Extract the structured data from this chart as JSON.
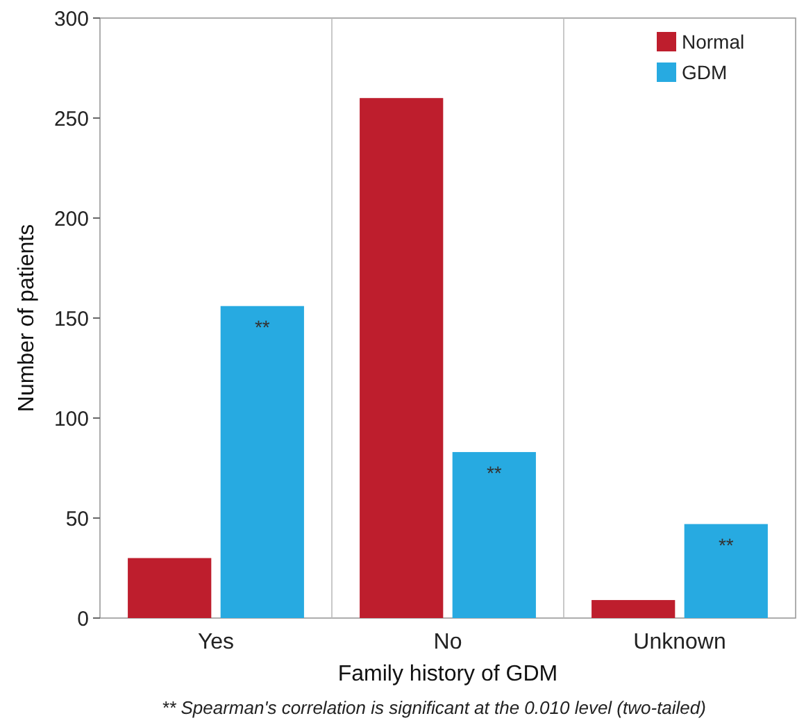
{
  "chart_data": {
    "type": "bar",
    "xlabel": "Family history of GDM",
    "ylabel": "Number of patients",
    "categories": [
      "Yes",
      "No",
      "Unknown"
    ],
    "series": [
      {
        "name": "Normal",
        "color": "#be1e2d",
        "values": [
          30,
          260,
          9
        ]
      },
      {
        "name": "GDM",
        "color": "#27aae1",
        "values": [
          156,
          83,
          47
        ]
      }
    ],
    "ylim": [
      0,
      300
    ],
    "yticks": [
      0,
      50,
      100,
      150,
      200,
      250,
      300
    ],
    "grid": "x",
    "legend": "top right",
    "annotations": [
      {
        "text": "**",
        "x": "Yes",
        "y": 156
      },
      {
        "text": "**",
        "x": "No",
        "y": 83
      },
      {
        "text": "**",
        "x": "Unknown",
        "y": 47
      },
      "** Spearman's correlation is significant at the 0.010 level (two-tailed)"
    ]
  }
}
